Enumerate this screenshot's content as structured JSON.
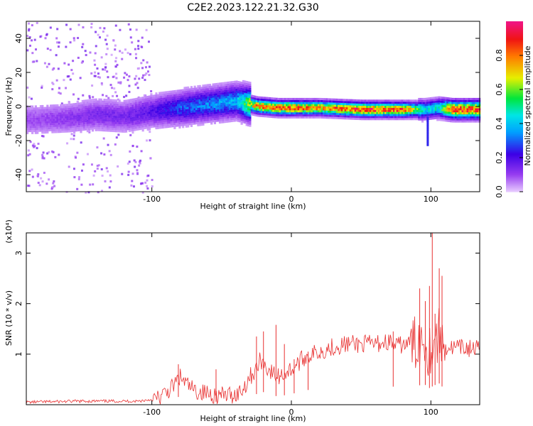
{
  "title": "C2E2.2023.122.21.32.G30",
  "chart_data": [
    {
      "type": "heatmap",
      "xlabel": "Height of straight line (km)",
      "ylabel": "Frequency (Hz)",
      "xlim": [
        -190,
        135
      ],
      "ylim": [
        -50,
        50
      ],
      "x_ticks": [
        "-100",
        "0",
        "100"
      ],
      "x_tick_values": [
        -100,
        0,
        100
      ],
      "y_ticks": [
        "-40",
        "-20",
        "0",
        "20",
        "40"
      ],
      "y_tick_values": [
        -40,
        -20,
        0,
        20,
        40
      ],
      "colorbar": {
        "label": "Normalized spectral amplitude",
        "range": [
          0,
          1
        ],
        "ticks": [
          "0.0",
          "0.2",
          "0.4",
          "0.6",
          "0.8"
        ],
        "tick_values": [
          0.0,
          0.2,
          0.4,
          0.6,
          0.8
        ],
        "colormap": "rainbow (magenta → violet → blue → cyan → green → yellow → orange → red → pink)"
      },
      "ridge": {
        "description": "dominant frequency band vs height",
        "x": [
          -185,
          -160,
          -140,
          -120,
          -100,
          -80,
          -60,
          -40,
          -25,
          -10,
          0,
          20,
          50,
          80,
          95,
          105,
          115,
          135
        ],
        "y": [
          -8,
          -7,
          -5,
          -6,
          -3,
          -1,
          1,
          3,
          0,
          -1,
          -1,
          -1,
          -2,
          -2,
          -2,
          -1,
          -2,
          -2
        ],
        "max_amplitude": [
          0.1,
          0.12,
          0.15,
          0.15,
          0.2,
          0.3,
          0.35,
          0.4,
          0.85,
          0.9,
          0.9,
          0.8,
          0.95,
          0.9,
          0.45,
          0.5,
          0.95,
          0.9
        ]
      }
    },
    {
      "type": "line",
      "xlabel": "Height of straight line (km)",
      "ylabel": "SNR (10 * v/v)",
      "y_multiplier": "(x10⁴)",
      "xlim": [
        -190,
        135
      ],
      "ylim": [
        0,
        3.4
      ],
      "x_ticks": [
        "-100",
        "0",
        "100"
      ],
      "x_tick_values": [
        -100,
        0,
        100
      ],
      "y_ticks": [
        "1",
        "2",
        "3"
      ],
      "y_tick_values": [
        1,
        2,
        3
      ],
      "color": "#e83030",
      "series": [
        {
          "x": [
            -190,
            -150,
            -110,
            -95,
            -85,
            -80,
            -75,
            -70,
            -60,
            -50,
            -40,
            -35,
            -30,
            -25,
            -22,
            -15,
            -10,
            -5,
            0,
            10,
            20,
            30,
            40,
            50,
            60,
            70,
            75,
            80,
            88,
            93,
            96,
            98,
            100,
            102,
            104,
            106,
            108,
            110,
            115,
            125,
            135
          ],
          "y": [
            0.05,
            0.07,
            0.07,
            0.12,
            0.35,
            0.55,
            0.4,
            0.28,
            0.22,
            0.18,
            0.2,
            0.3,
            0.55,
            0.7,
            0.9,
            0.65,
            0.55,
            0.62,
            0.7,
            0.95,
            1.05,
            1.15,
            1.2,
            1.2,
            1.2,
            1.25,
            1.15,
            1.2,
            1.2,
            1.3,
            1.3,
            1.1,
            1.1,
            1.3,
            1.3,
            1.4,
            1.2,
            1.15,
            1.12,
            1.12,
            1.1
          ]
        }
      ],
      "spikes": [
        {
          "x": -81,
          "y": 0.8
        },
        {
          "x": -54,
          "y": 0.7
        },
        {
          "x": -25,
          "y": 1.35
        },
        {
          "x": -20,
          "y": 1.45
        },
        {
          "x": -11,
          "y": 1.58
        },
        {
          "x": -5,
          "y": 1.2
        },
        {
          "x": 2,
          "y": 0.9
        },
        {
          "x": 12,
          "y": 1.05
        },
        {
          "x": 73,
          "y": 1.45
        },
        {
          "x": 92,
          "y": 2.3
        },
        {
          "x": 96,
          "y": 2.05
        },
        {
          "x": 99,
          "y": 2.35
        },
        {
          "x": 101,
          "y": 3.4
        },
        {
          "x": 103,
          "y": 1.8
        },
        {
          "x": 106,
          "y": 2.7
        },
        {
          "x": 108,
          "y": 2.55
        }
      ]
    }
  ]
}
